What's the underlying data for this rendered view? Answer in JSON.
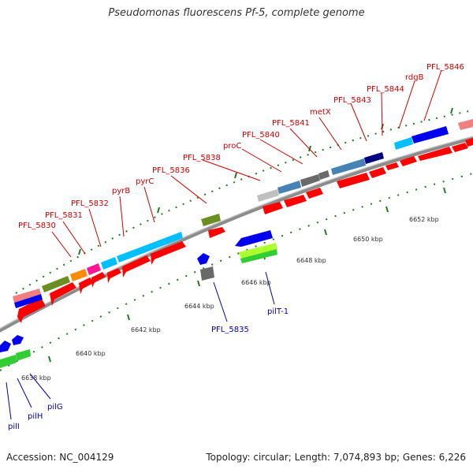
{
  "header": {
    "title": "Pseudomonas fluorescens Pf-5, complete genome"
  },
  "footer": {
    "accession": "Accession: NC_004129",
    "topology": "Topology: circular; Length: 7,074,893 bp; Genes: 6,226"
  },
  "colors": {
    "backbone": "#8c8c8c",
    "forward_gene": "#ff0000",
    "reverse_gene": "#0000ee",
    "label_top": "#cc0000",
    "label_bottom": "#0000aa",
    "tick": "#1f7a1f"
  },
  "scale_labels": [
    "6638 kbp",
    "6640 kbp",
    "6642 kbp",
    "6644 kbp",
    "6646 kbp",
    "6648 kbp",
    "6650 kbp",
    "6652 kbp"
  ],
  "top_labels": [
    "PFL_5830",
    "PFL_5831",
    "PFL_5832",
    "pyrB",
    "pyrC",
    "PFL_5836",
    "PFL_5838",
    "proC",
    "PFL_5840",
    "PFL_5841",
    "metX",
    "PFL_5843",
    "PFL_5844",
    "rdgB",
    "PFL_5846"
  ],
  "bottom_labels": [
    "pilI",
    "pilH",
    "pilG",
    "PFL_5835",
    "pilT-1"
  ]
}
